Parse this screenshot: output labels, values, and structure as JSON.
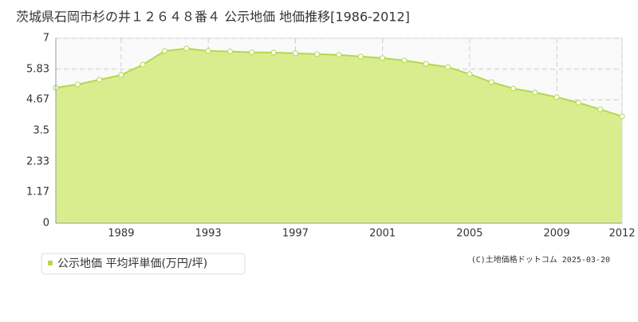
{
  "chart_data": {
    "type": "area",
    "title": "茨城県石岡市杉の井１２６４８番４ 公示地価 地価推移[1986-2012]",
    "x": [
      1986,
      1987,
      1988,
      1989,
      1990,
      1991,
      1992,
      1993,
      1994,
      1995,
      1996,
      1997,
      1998,
      1999,
      2000,
      2001,
      2002,
      2003,
      2004,
      2005,
      2006,
      2007,
      2008,
      2009,
      2010,
      2011,
      2012
    ],
    "series": [
      {
        "name": "公示地価 平均坪単価(万円/坪)",
        "color": "#b5d84a",
        "fill": "#d9ed8f",
        "values": [
          5.13,
          5.25,
          5.43,
          5.61,
          6.0,
          6.52,
          6.61,
          6.52,
          6.5,
          6.47,
          6.46,
          6.43,
          6.4,
          6.37,
          6.31,
          6.25,
          6.16,
          6.03,
          5.91,
          5.64,
          5.34,
          5.1,
          4.95,
          4.77,
          4.56,
          4.31,
          4.04
        ]
      }
    ],
    "xlim": [
      1986,
      2012
    ],
    "xticks": [
      1989,
      1993,
      1997,
      2001,
      2005,
      2009,
      2012
    ],
    "ylim": [
      0,
      7
    ],
    "yticks": [
      0,
      1.17,
      2.33,
      3.5,
      4.67,
      5.83,
      7
    ],
    "grid": true,
    "annotation": "(C)土地価格ドットコム 2025-03-20"
  }
}
